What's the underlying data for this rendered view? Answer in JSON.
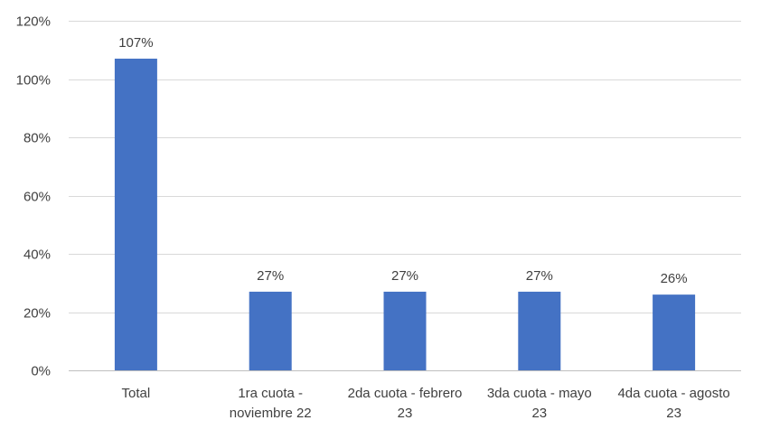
{
  "chart_data": {
    "type": "bar",
    "title": "",
    "xlabel": "",
    "ylabel": "",
    "categories": [
      [
        "Total"
      ],
      [
        "1ra cuota -",
        "noviembre 22"
      ],
      [
        "2da cuota - febrero",
        "23"
      ],
      [
        "3da cuota - mayo",
        "23"
      ],
      [
        "4da cuota - agosto",
        "23"
      ]
    ],
    "values": [
      107,
      27,
      27,
      27,
      26
    ],
    "data_labels": [
      "107%",
      "27%",
      "27%",
      "27%",
      "26%"
    ],
    "y_ticks": [
      0,
      20,
      40,
      60,
      80,
      100,
      120
    ],
    "y_tick_labels": [
      "0%",
      "20%",
      "40%",
      "60%",
      "80%",
      "100%",
      "120%"
    ],
    "ylim": [
      0,
      120
    ],
    "grid": true,
    "legend": "none",
    "colors": {
      "bar": "#4472C4",
      "grid": "#D9D9D9",
      "axis": "#BFBFBF",
      "text": "#404040"
    }
  }
}
